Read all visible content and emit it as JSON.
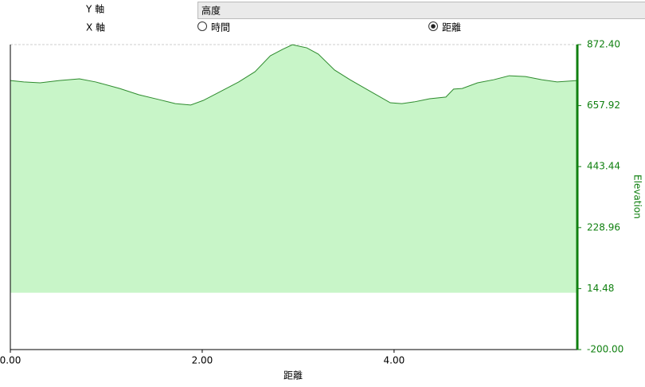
{
  "controls": {
    "y_axis_label": "Y 軸",
    "y_axis_value": "高度",
    "x_axis_label": "X 軸",
    "x_options": [
      {
        "label": "時間",
        "selected": false
      },
      {
        "label": "距離",
        "selected": true
      }
    ]
  },
  "chart_data": {
    "type": "area",
    "x_label": "距離",
    "y_label": "Elevation",
    "x": [
      0,
      0.14,
      0.31,
      0.51,
      0.72,
      0.89,
      1.14,
      1.34,
      1.55,
      1.72,
      1.88,
      2.01,
      2.17,
      2.38,
      2.55,
      2.71,
      2.84,
      2.94,
      3.09,
      3.21,
      3.38,
      3.54,
      3.71,
      3.83,
      3.96,
      4.08,
      4.21,
      4.37,
      4.54,
      4.62,
      4.71,
      4.87,
      5.04,
      5.2,
      5.37,
      5.54,
      5.7,
      5.91
    ],
    "series": [
      {
        "color": "#2e8b2e",
        "fill": "#c8f5c8",
        "values": [
          746,
          741,
          738,
          746,
          752,
          741,
          718,
          696,
          679,
          665,
          660,
          676,
          704,
          741,
          777,
          833,
          856,
          872,
          861,
          839,
          783,
          749,
          716,
          693,
          668,
          665,
          671,
          682,
          688,
          716,
          718,
          738,
          749,
          763,
          760,
          749,
          741,
          746
        ]
      }
    ],
    "xlim": [
      0,
      5.91
    ],
    "xticks": [
      {
        "value": 0,
        "label": "0.00"
      },
      {
        "value": 2,
        "label": "2.00"
      },
      {
        "value": 4,
        "label": "4.00"
      }
    ],
    "ylim": [
      -200,
      872.4
    ],
    "yticks": [
      {
        "value": -200,
        "label": "-200.00"
      },
      14.48,
      228.96,
      443.44,
      657.92,
      {
        "value": 872.4,
        "label": "872.40"
      }
    ],
    "grid": true,
    "axis_color": "#108010"
  }
}
